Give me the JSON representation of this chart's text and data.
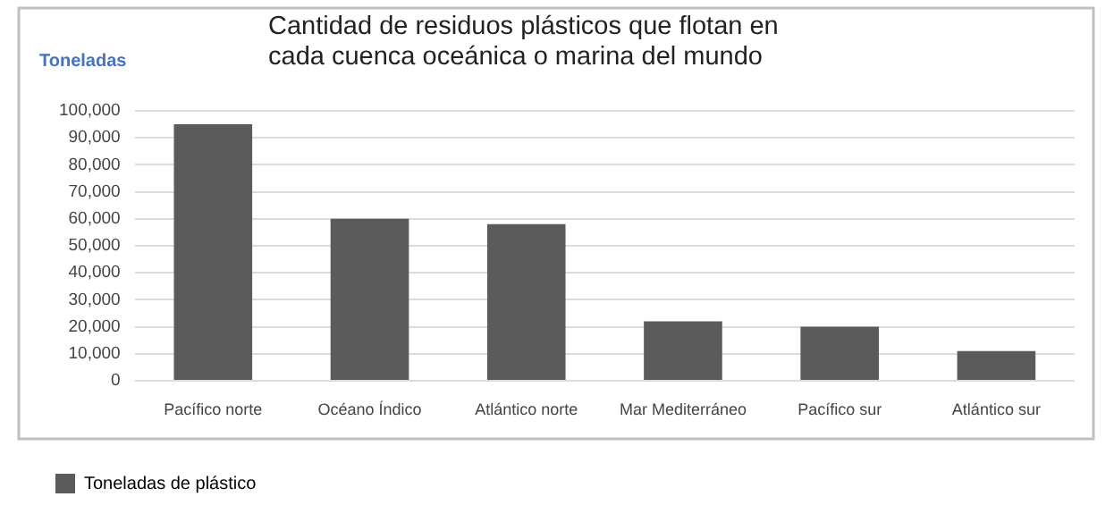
{
  "chart_data": {
    "type": "bar",
    "title": "Cantidad de residuos plásticos que flotan en cada cuenca oceánica o marina del mundo",
    "ylabel": "Toneladas",
    "categories": [
      "Pacífico norte",
      "Océano Índico",
      "Atlántico norte",
      "Mar Mediterráneo",
      "Pacífico sur",
      "Atlántico sur"
    ],
    "series": [
      {
        "name": "Toneladas de plástico",
        "color": "#5b5b5b",
        "values": [
          95000,
          60000,
          58000,
          22000,
          20000,
          11000
        ]
      }
    ],
    "ylim": [
      0,
      100000
    ],
    "yticks": [
      {
        "value": 0,
        "label": "0"
      },
      {
        "value": 10000,
        "label": "10,000"
      },
      {
        "value": 20000,
        "label": "20,000"
      },
      {
        "value": 30000,
        "label": "30,000"
      },
      {
        "value": 40000,
        "label": "40,000"
      },
      {
        "value": 50000,
        "label": "50,000"
      },
      {
        "value": 60000,
        "label": "60,000"
      },
      {
        "value": 70000,
        "label": "70,000"
      },
      {
        "value": 80000,
        "label": "80,000"
      },
      {
        "value": 90000,
        "label": "90,000"
      },
      {
        "value": 100000,
        "label": "100,000"
      }
    ],
    "grid": "y",
    "legend": "bottom"
  }
}
